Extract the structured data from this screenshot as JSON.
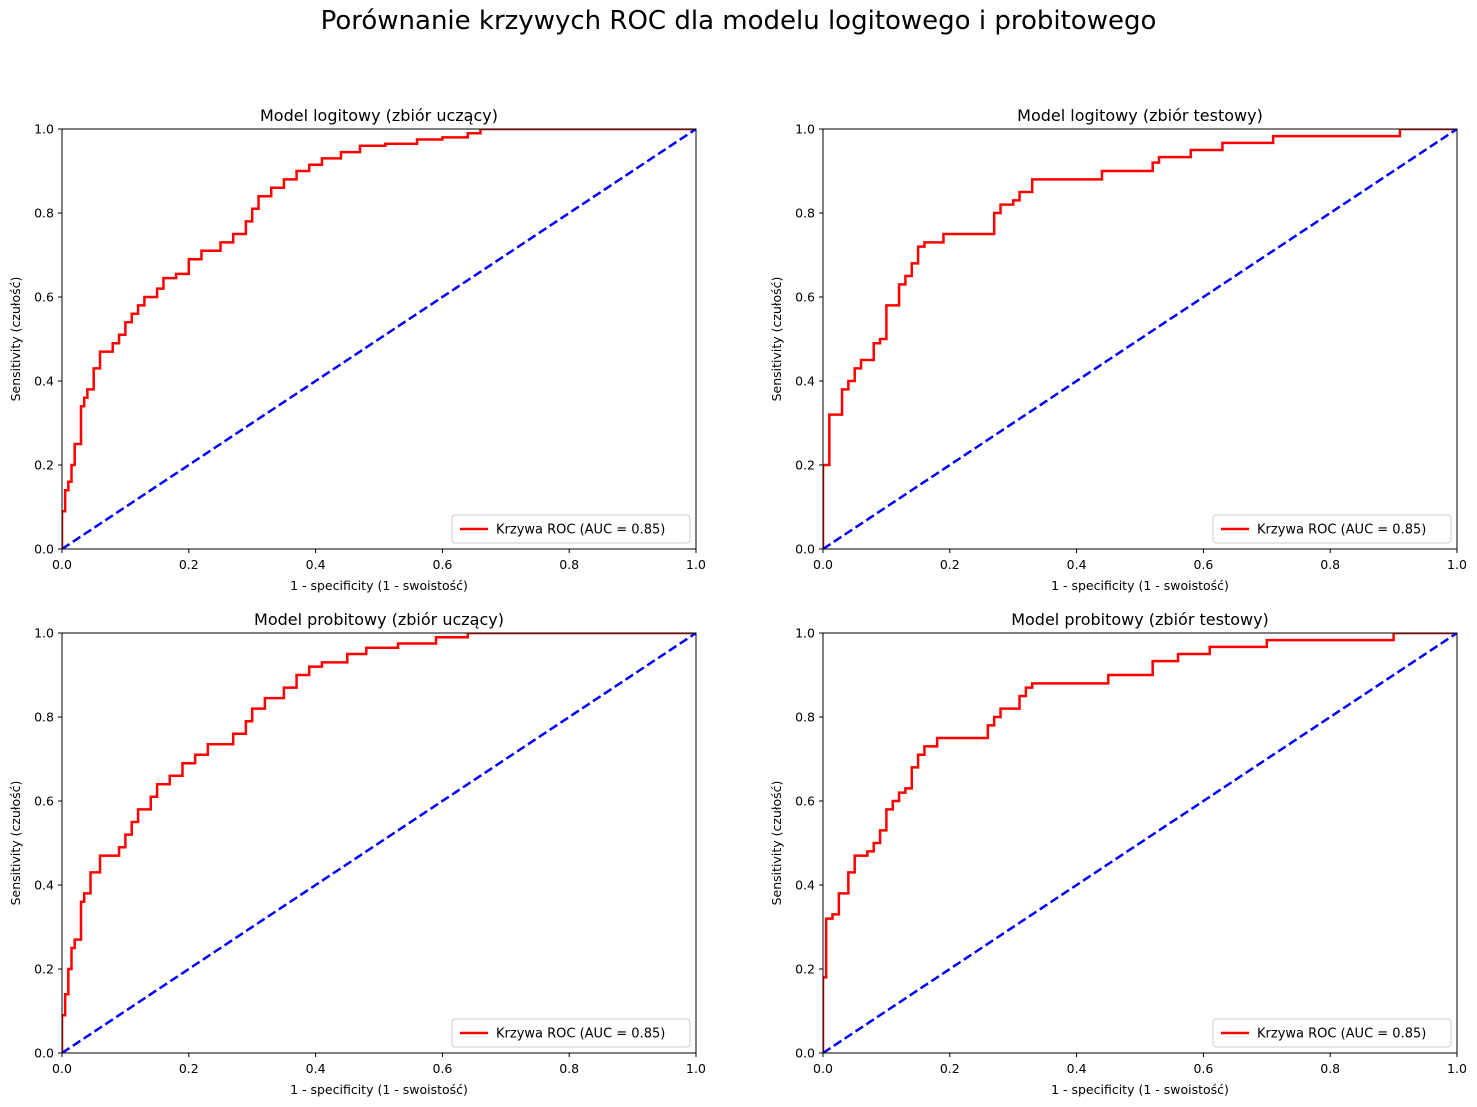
{
  "figure": {
    "title": "Porównanie krzywych ROC dla modelu logitowego i probitowego"
  },
  "colors": {
    "roc": "#ff0000",
    "diagonal": "#0000ff",
    "axes": "#000000"
  },
  "chart_data": [
    {
      "type": "line",
      "title": "Model logitowy (zbiór uczący)",
      "xlabel": "1 - specificity (1 - swoistość)",
      "ylabel": "Sensitivity (czułość)",
      "xlim": [
        0,
        1
      ],
      "ylim": [
        0,
        1
      ],
      "xticks": [
        "0.0",
        "0.2",
        "0.4",
        "0.6",
        "0.8",
        "1.0"
      ],
      "yticks": [
        "0.0",
        "0.2",
        "0.4",
        "0.6",
        "0.8",
        "1.0"
      ],
      "legend": {
        "entry": "Krzywa ROC (AUC = 0.85)",
        "placement": "lower-right"
      },
      "grid": false,
      "roc_step": true,
      "series": [
        {
          "name": "Krzywa ROC (AUC = 0.85)",
          "style": "solid",
          "x": [
            0,
            0,
            0.005,
            0.005,
            0.01,
            0.01,
            0.015,
            0.015,
            0.02,
            0.02,
            0.03,
            0.03,
            0.035,
            0.035,
            0.04,
            0.04,
            0.05,
            0.05,
            0.06,
            0.06,
            0.08,
            0.08,
            0.09,
            0.09,
            0.1,
            0.1,
            0.11,
            0.11,
            0.12,
            0.12,
            0.13,
            0.13,
            0.15,
            0.15,
            0.16,
            0.16,
            0.18,
            0.18,
            0.2,
            0.2,
            0.22,
            0.22,
            0.25,
            0.25,
            0.27,
            0.27,
            0.29,
            0.29,
            0.3,
            0.3,
            0.31,
            0.31,
            0.33,
            0.33,
            0.35,
            0.35,
            0.37,
            0.37,
            0.39,
            0.39,
            0.41,
            0.41,
            0.44,
            0.44,
            0.47,
            0.47,
            0.51,
            0.51,
            0.56,
            0.56,
            0.6,
            0.6,
            0.64,
            0.64,
            0.66,
            0.66,
            1
          ],
          "y": [
            0,
            0.09,
            0.09,
            0.14,
            0.14,
            0.16,
            0.16,
            0.2,
            0.2,
            0.25,
            0.25,
            0.34,
            0.34,
            0.36,
            0.36,
            0.38,
            0.38,
            0.43,
            0.43,
            0.47,
            0.47,
            0.49,
            0.49,
            0.51,
            0.51,
            0.54,
            0.54,
            0.56,
            0.56,
            0.58,
            0.58,
            0.6,
            0.6,
            0.62,
            0.62,
            0.645,
            0.645,
            0.655,
            0.655,
            0.69,
            0.69,
            0.71,
            0.71,
            0.73,
            0.73,
            0.75,
            0.75,
            0.78,
            0.78,
            0.81,
            0.81,
            0.84,
            0.84,
            0.86,
            0.86,
            0.88,
            0.88,
            0.9,
            0.9,
            0.915,
            0.915,
            0.93,
            0.93,
            0.945,
            0.945,
            0.96,
            0.96,
            0.965,
            0.965,
            0.975,
            0.975,
            0.98,
            0.98,
            0.99,
            0.99,
            1,
            1
          ]
        },
        {
          "name": "",
          "style": "dashed",
          "x": [
            0,
            1
          ],
          "y": [
            0,
            1
          ]
        }
      ]
    },
    {
      "type": "line",
      "title": "Model logitowy (zbiór testowy)",
      "xlabel": "1 - specificity (1 - swoistość)",
      "ylabel": "Sensitivity (czułość)",
      "xlim": [
        0,
        1
      ],
      "ylim": [
        0,
        1
      ],
      "xticks": [
        "0.0",
        "0.2",
        "0.4",
        "0.6",
        "0.8",
        "1.0"
      ],
      "yticks": [
        "0.0",
        "0.2",
        "0.4",
        "0.6",
        "0.8",
        "1.0"
      ],
      "legend": {
        "entry": "Krzywa ROC (AUC = 0.85)",
        "placement": "lower-right"
      },
      "grid": false,
      "roc_step": true,
      "series": [
        {
          "name": "Krzywa ROC (AUC = 0.85)",
          "style": "solid",
          "x": [
            0,
            0,
            0.01,
            0.01,
            0.03,
            0.03,
            0.04,
            0.04,
            0.05,
            0.05,
            0.06,
            0.06,
            0.08,
            0.08,
            0.09,
            0.09,
            0.1,
            0.1,
            0.12,
            0.12,
            0.13,
            0.13,
            0.14,
            0.14,
            0.15,
            0.15,
            0.16,
            0.16,
            0.19,
            0.19,
            0.27,
            0.27,
            0.28,
            0.28,
            0.3,
            0.3,
            0.31,
            0.31,
            0.33,
            0.33,
            0.44,
            0.44,
            0.52,
            0.52,
            0.53,
            0.53,
            0.58,
            0.58,
            0.63,
            0.63,
            0.71,
            0.71,
            0.91,
            0.91,
            1
          ],
          "y": [
            0,
            0.2,
            0.2,
            0.32,
            0.32,
            0.38,
            0.38,
            0.4,
            0.4,
            0.43,
            0.43,
            0.45,
            0.45,
            0.49,
            0.49,
            0.5,
            0.5,
            0.58,
            0.58,
            0.63,
            0.63,
            0.65,
            0.65,
            0.68,
            0.68,
            0.72,
            0.72,
            0.73,
            0.73,
            0.75,
            0.75,
            0.8,
            0.8,
            0.82,
            0.82,
            0.83,
            0.83,
            0.85,
            0.85,
            0.88,
            0.88,
            0.9,
            0.9,
            0.92,
            0.92,
            0.933,
            0.933,
            0.95,
            0.95,
            0.967,
            0.967,
            0.983,
            0.983,
            1,
            1
          ]
        },
        {
          "name": "",
          "style": "dashed",
          "x": [
            0,
            1
          ],
          "y": [
            0,
            1
          ]
        }
      ]
    },
    {
      "type": "line",
      "title": "Model probitowy (zbiór uczący)",
      "xlabel": "1 - specificity (1 - swoistość)",
      "ylabel": "Sensitivity (czułość)",
      "xlim": [
        0,
        1
      ],
      "ylim": [
        0,
        1
      ],
      "xticks": [
        "0.0",
        "0.2",
        "0.4",
        "0.6",
        "0.8",
        "1.0"
      ],
      "yticks": [
        "0.0",
        "0.2",
        "0.4",
        "0.6",
        "0.8",
        "1.0"
      ],
      "legend": {
        "entry": "Krzywa ROC (AUC = 0.85)",
        "placement": "lower-right"
      },
      "grid": false,
      "roc_step": true,
      "series": [
        {
          "name": "Krzywa ROC (AUC = 0.85)",
          "style": "solid",
          "x": [
            0,
            0,
            0.005,
            0.005,
            0.01,
            0.01,
            0.015,
            0.015,
            0.02,
            0.02,
            0.03,
            0.03,
            0.035,
            0.035,
            0.045,
            0.045,
            0.06,
            0.06,
            0.09,
            0.09,
            0.1,
            0.1,
            0.11,
            0.11,
            0.12,
            0.12,
            0.14,
            0.14,
            0.15,
            0.15,
            0.17,
            0.17,
            0.19,
            0.19,
            0.21,
            0.21,
            0.23,
            0.23,
            0.27,
            0.27,
            0.29,
            0.29,
            0.3,
            0.3,
            0.32,
            0.32,
            0.35,
            0.35,
            0.37,
            0.37,
            0.39,
            0.39,
            0.41,
            0.41,
            0.45,
            0.45,
            0.48,
            0.48,
            0.53,
            0.53,
            0.59,
            0.59,
            0.64,
            0.64,
            0.67,
            0.67,
            1
          ],
          "y": [
            0,
            0.09,
            0.09,
            0.14,
            0.14,
            0.2,
            0.2,
            0.25,
            0.25,
            0.27,
            0.27,
            0.36,
            0.36,
            0.38,
            0.38,
            0.43,
            0.43,
            0.47,
            0.47,
            0.49,
            0.49,
            0.52,
            0.52,
            0.55,
            0.55,
            0.58,
            0.58,
            0.61,
            0.61,
            0.64,
            0.64,
            0.66,
            0.66,
            0.69,
            0.69,
            0.71,
            0.71,
            0.735,
            0.735,
            0.76,
            0.76,
            0.79,
            0.79,
            0.82,
            0.82,
            0.845,
            0.845,
            0.87,
            0.87,
            0.9,
            0.9,
            0.92,
            0.92,
            0.93,
            0.93,
            0.95,
            0.95,
            0.965,
            0.965,
            0.975,
            0.975,
            0.99,
            0.99,
            1,
            1,
            1,
            1
          ]
        },
        {
          "name": "",
          "style": "dashed",
          "x": [
            0,
            1
          ],
          "y": [
            0,
            1
          ]
        }
      ]
    },
    {
      "type": "line",
      "title": "Model probitowy (zbiór testowy)",
      "xlabel": "1 - specificity (1 - swoistość)",
      "ylabel": "Sensitivity (czułość)",
      "xlim": [
        0,
        1
      ],
      "ylim": [
        0,
        1
      ],
      "xticks": [
        "0.0",
        "0.2",
        "0.4",
        "0.6",
        "0.8",
        "1.0"
      ],
      "yticks": [
        "0.0",
        "0.2",
        "0.4",
        "0.6",
        "0.8",
        "1.0"
      ],
      "legend": {
        "entry": "Krzywa ROC (AUC = 0.85)",
        "placement": "lower-right"
      },
      "grid": false,
      "roc_step": true,
      "series": [
        {
          "name": "Krzywa ROC (AUC = 0.85)",
          "style": "solid",
          "x": [
            0,
            0,
            0.005,
            0.005,
            0.015,
            0.015,
            0.025,
            0.025,
            0.04,
            0.04,
            0.05,
            0.05,
            0.07,
            0.07,
            0.08,
            0.08,
            0.09,
            0.09,
            0.1,
            0.1,
            0.11,
            0.11,
            0.12,
            0.12,
            0.13,
            0.13,
            0.14,
            0.14,
            0.15,
            0.15,
            0.16,
            0.16,
            0.18,
            0.18,
            0.26,
            0.26,
            0.27,
            0.27,
            0.28,
            0.28,
            0.31,
            0.31,
            0.32,
            0.32,
            0.33,
            0.33,
            0.45,
            0.45,
            0.52,
            0.52,
            0.56,
            0.56,
            0.61,
            0.61,
            0.7,
            0.7,
            0.9,
            0.9,
            1
          ],
          "y": [
            0,
            0.18,
            0.18,
            0.32,
            0.32,
            0.33,
            0.33,
            0.38,
            0.38,
            0.43,
            0.43,
            0.47,
            0.47,
            0.48,
            0.48,
            0.5,
            0.5,
            0.53,
            0.53,
            0.58,
            0.58,
            0.6,
            0.6,
            0.62,
            0.62,
            0.63,
            0.63,
            0.68,
            0.68,
            0.71,
            0.71,
            0.73,
            0.73,
            0.75,
            0.75,
            0.78,
            0.78,
            0.8,
            0.8,
            0.82,
            0.82,
            0.85,
            0.85,
            0.87,
            0.87,
            0.88,
            0.88,
            0.9,
            0.9,
            0.933,
            0.933,
            0.95,
            0.95,
            0.967,
            0.967,
            0.983,
            0.983,
            1,
            1
          ]
        },
        {
          "name": "",
          "style": "dashed",
          "x": [
            0,
            1
          ],
          "y": [
            0,
            1
          ]
        }
      ]
    }
  ]
}
